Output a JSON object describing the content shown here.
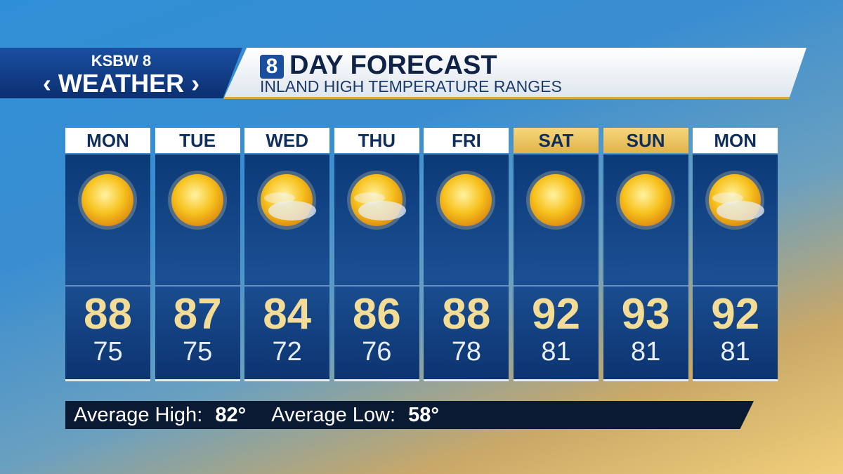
{
  "header": {
    "logo_top": "KSBW",
    "logo_num": "8",
    "logo_bottom": "WEATHER",
    "badge": "8",
    "title": "DAY FORECAST",
    "subtitle": "INLAND HIGH TEMPERATURE RANGES"
  },
  "days": [
    {
      "day": "MON",
      "high": 88,
      "low": 75
    },
    {
      "day": "TUE",
      "high": 87,
      "low": 75
    },
    {
      "day": "WED",
      "high": 84,
      "low": 72
    },
    {
      "day": "THU",
      "high": 86,
      "low": 76
    },
    {
      "day": "FRI",
      "high": 88,
      "low": 78
    },
    {
      "day": "SAT",
      "high": 92,
      "low": 81
    },
    {
      "day": "SUN",
      "high": 93,
      "low": 81
    },
    {
      "day": "MON",
      "high": 92,
      "low": 81
    }
  ],
  "footer": {
    "high_label": "Average High:",
    "high_value": "82°",
    "low_label": "Average Low:",
    "low_value": "58°"
  }
}
